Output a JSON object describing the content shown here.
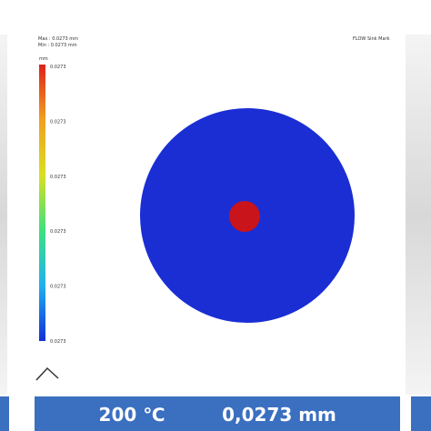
{
  "header": {
    "max": "Max : 0.0273 mm",
    "min": "Min : 0.0273 mm",
    "study": "FLOW Sink Mark"
  },
  "legend": {
    "unit": "mm",
    "labels": [
      "0.0273",
      "0.0273",
      "0.0273",
      "0.0273",
      "0.0273",
      "0.0273"
    ]
  },
  "footer": {
    "temperature": "200 ℃",
    "value": "0,0273 mm"
  }
}
